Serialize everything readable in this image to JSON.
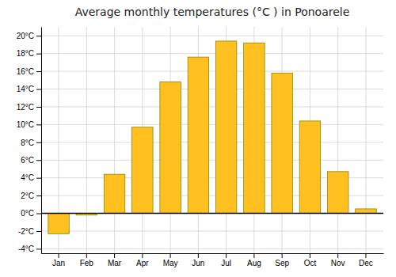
{
  "chart_data": {
    "type": "bar",
    "title": "Average monthly temperatures (°C ) in Ponoarele",
    "categories": [
      "Jan",
      "Feb",
      "Mar",
      "Apr",
      "May",
      "Jun",
      "Jul",
      "Aug",
      "Sep",
      "Oct",
      "Nov",
      "Dec"
    ],
    "values": [
      -2.3,
      -0.2,
      4.4,
      9.7,
      14.8,
      17.6,
      19.4,
      19.2,
      15.8,
      10.4,
      4.7,
      0.5
    ],
    "color": "#FFC020",
    "ylim": [
      -4.5,
      21
    ],
    "yticks": [
      {
        "value": -4,
        "label": "-4°C"
      },
      {
        "value": -2,
        "label": "-2°C"
      },
      {
        "value": 0,
        "label": "0°C"
      },
      {
        "value": 2,
        "label": "2°C"
      },
      {
        "value": 4,
        "label": "4°C"
      },
      {
        "value": 6,
        "label": "6°C"
      },
      {
        "value": 8,
        "label": "8°C"
      },
      {
        "value": 10,
        "label": "10°C"
      },
      {
        "value": 12,
        "label": "12°C"
      },
      {
        "value": 14,
        "label": "14°C"
      },
      {
        "value": 16,
        "label": "16°C"
      },
      {
        "value": 18,
        "label": "18°C"
      },
      {
        "value": 20,
        "label": "20°C"
      }
    ],
    "grid": true
  }
}
